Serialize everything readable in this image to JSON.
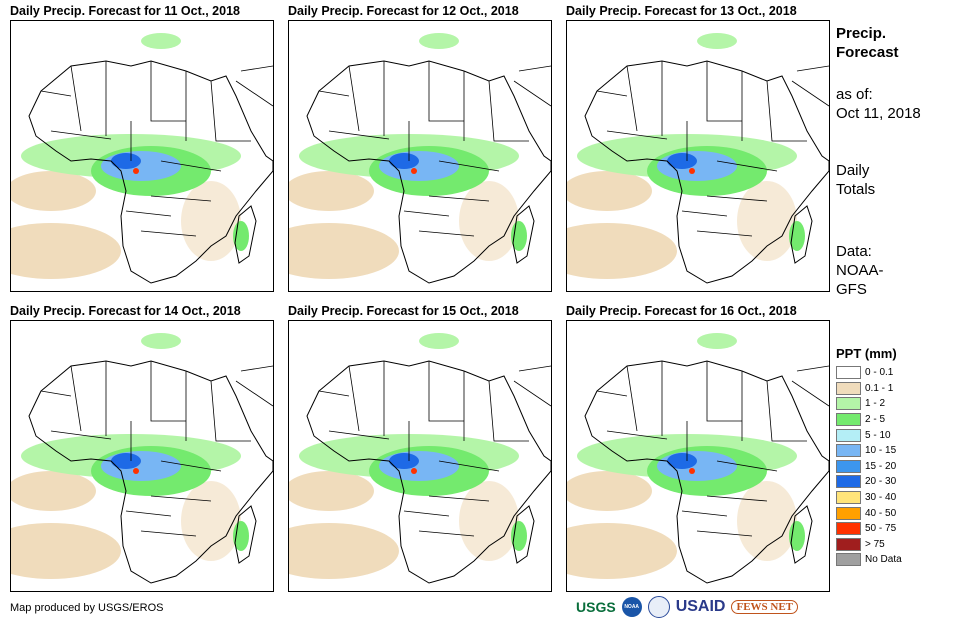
{
  "panels": [
    {
      "title": "Daily Precip. Forecast for 11 Oct., 2018"
    },
    {
      "title": "Daily Precip. Forecast for 12 Oct., 2018"
    },
    {
      "title": "Daily Precip. Forecast for 13 Oct., 2018"
    },
    {
      "title": "Daily Precip. Forecast for 14 Oct., 2018"
    },
    {
      "title": "Daily Precip. Forecast for 15 Oct., 2018"
    },
    {
      "title": "Daily Precip. Forecast for 16 Oct., 2018"
    }
  ],
  "side": {
    "title1": "Precip.",
    "title2": "Forecast",
    "asof": "as of:",
    "date": "Oct 11, 2018",
    "daily": "Daily",
    "totals": "Totals",
    "data": "Data:",
    "src1": "NOAA-",
    "src2": "GFS"
  },
  "legend": {
    "title": "PPT (mm)",
    "items": [
      {
        "label": "0 - 0.1",
        "color": "#ffffff"
      },
      {
        "label": "0.1 - 1",
        "color": "#f0dcbc"
      },
      {
        "label": "1 - 2",
        "color": "#b4f5a8"
      },
      {
        "label": "2 - 5",
        "color": "#74ea6e"
      },
      {
        "label": "5 - 10",
        "color": "#b4eef6"
      },
      {
        "label": "10 - 15",
        "color": "#78b6f4"
      },
      {
        "label": "15 - 20",
        "color": "#3c96ee"
      },
      {
        "label": "20 - 30",
        "color": "#1e6ae6"
      },
      {
        "label": "30 - 40",
        "color": "#ffe47a"
      },
      {
        "label": "40 - 50",
        "color": "#ffa000"
      },
      {
        "label": "50 - 75",
        "color": "#ff3200"
      },
      {
        "label": "> 75",
        "color": "#a01e1e"
      },
      {
        "label": "No Data",
        "color": "#a0a0a0"
      }
    ]
  },
  "credit": "Map produced by USGS/EROS",
  "logos": [
    "USGS",
    "NOAA",
    "USAID",
    "FEWS NET"
  ]
}
